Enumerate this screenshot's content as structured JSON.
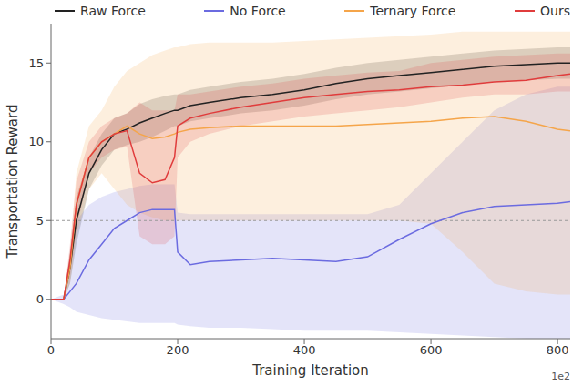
{
  "chart_data": {
    "type": "line",
    "x_label": "Training Iteration",
    "y_label": "Transportation Reward",
    "x_scale_label": "1e2",
    "x": [
      0,
      20,
      30,
      40,
      60,
      80,
      100,
      120,
      140,
      160,
      180,
      195,
      200,
      220,
      250,
      300,
      350,
      400,
      450,
      500,
      550,
      600,
      650,
      700,
      750,
      800,
      820
    ],
    "xlim": [
      0,
      820
    ],
    "xticks": [
      0,
      200,
      400,
      600,
      800
    ],
    "ylim": [
      -2.5,
      17.5
    ],
    "yticks": [
      0,
      5,
      10,
      15
    ],
    "grid": false,
    "legend": "top",
    "hlines": [
      5
    ],
    "series": [
      {
        "name": "Raw Force",
        "color": "#222222",
        "values": [
          0,
          0,
          2,
          5,
          8,
          9.5,
          10.5,
          10.8,
          11.2,
          11.5,
          11.8,
          12,
          12,
          12.3,
          12.5,
          12.8,
          13,
          13.3,
          13.7,
          14,
          14.2,
          14.4,
          14.6,
          14.8,
          14.9,
          15,
          15
        ],
        "lower": [
          0,
          0,
          1,
          3.5,
          7,
          8.5,
          9.5,
          9.8,
          10,
          10.3,
          10.7,
          11,
          11,
          11.3,
          11.5,
          11.8,
          12,
          12.3,
          12.7,
          13,
          13.2,
          13.4,
          13.6,
          13.8,
          13.9,
          14,
          14
        ],
        "upper": [
          0,
          0,
          3,
          6.5,
          9,
          10.5,
          11.5,
          11.8,
          12.4,
          12.7,
          12.9,
          13,
          13,
          13.3,
          13.5,
          13.8,
          14,
          14.3,
          14.7,
          15,
          15.2,
          15.4,
          15.6,
          15.8,
          15.9,
          16,
          16
        ]
      },
      {
        "name": "No Force",
        "color": "#6b6be0",
        "values": [
          0,
          0,
          0.5,
          1,
          2.5,
          3.5,
          4.5,
          5,
          5.5,
          5.7,
          5.7,
          5.7,
          3,
          2.2,
          2.4,
          2.5,
          2.6,
          2.5,
          2.4,
          2.7,
          3.8,
          4.8,
          5.5,
          5.9,
          6,
          6.1,
          6.2
        ],
        "lower": [
          0,
          -0.3,
          -0.5,
          -0.8,
          -1,
          -1.2,
          -1.3,
          -1.4,
          -1.5,
          -1.5,
          -1.5,
          -1.5,
          -1.6,
          -1.7,
          -1.8,
          -1.8,
          -1.9,
          -2,
          -2,
          -2,
          -2.1,
          -2.2,
          -2.3,
          -2.4,
          -2.5,
          -2.5,
          -2.5
        ],
        "upper": [
          0,
          0.3,
          2,
          5,
          6,
          6.5,
          6.8,
          7,
          7.2,
          7.3,
          7.3,
          7.3,
          5.5,
          5.4,
          5.4,
          5.4,
          5.4,
          5.4,
          5.4,
          5.4,
          6,
          8,
          10,
          12,
          13,
          13.5,
          13.5
        ]
      },
      {
        "name": "Ternary Force",
        "color": "#f5a54a",
        "values": [
          0,
          0,
          2,
          6,
          9,
          10,
          10.5,
          11,
          10.5,
          10.2,
          10.3,
          10.5,
          10.6,
          10.8,
          10.9,
          11,
          11,
          11,
          11,
          11.1,
          11.2,
          11.3,
          11.5,
          11.6,
          11.3,
          10.8,
          10.7
        ],
        "lower": [
          0,
          0,
          1,
          4,
          7,
          8,
          7,
          6,
          5.5,
          5.2,
          5,
          5,
          5,
          5,
          5,
          5,
          5,
          5,
          5,
          5,
          5,
          4.8,
          3,
          1,
          0.5,
          0.3,
          0.3
        ],
        "upper": [
          0,
          0,
          3,
          8,
          11,
          12,
          13.5,
          14.5,
          15,
          15.5,
          15.8,
          16,
          16,
          16.2,
          16.3,
          16.3,
          16.3,
          16.4,
          16.5,
          16.6,
          16.7,
          16.8,
          17,
          17,
          17,
          17,
          17
        ]
      },
      {
        "name": "Ours",
        "color": "#e03c3c",
        "values": [
          0,
          0,
          2.5,
          6,
          9,
          10,
          10.5,
          10.7,
          8,
          7.4,
          7.6,
          9,
          11,
          11.5,
          11.8,
          12.2,
          12.5,
          12.8,
          13,
          13.2,
          13.3,
          13.5,
          13.6,
          13.8,
          13.9,
          14.2,
          14.3
        ],
        "lower": [
          0,
          0,
          1.5,
          4.5,
          8,
          9,
          9.5,
          9.7,
          4,
          3.5,
          3.5,
          4,
          9,
          10,
          10.5,
          11,
          11.3,
          11.6,
          11.8,
          12,
          12.2,
          12.5,
          12.8,
          13,
          13,
          13.2,
          13.2
        ],
        "upper": [
          0,
          0,
          3.5,
          7.5,
          10,
          11,
          11.5,
          11.8,
          12.5,
          12,
          12,
          12,
          13,
          13,
          13.2,
          13.5,
          13.7,
          14,
          14.2,
          14.4,
          14.5,
          15,
          15.2,
          15.4,
          15.5,
          15.6,
          15.6
        ]
      }
    ]
  }
}
